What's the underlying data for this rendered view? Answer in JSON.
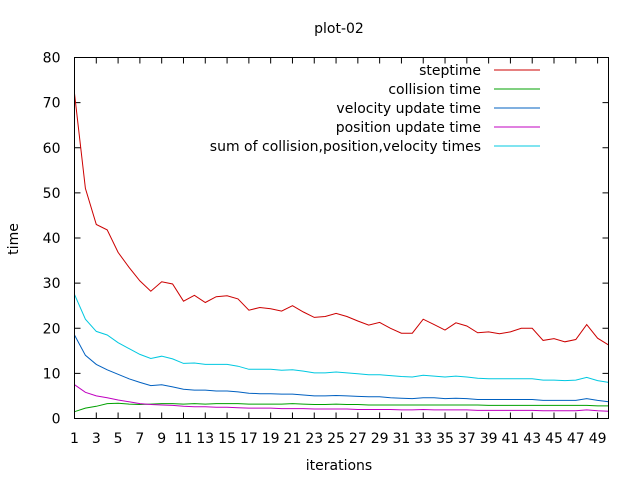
{
  "chart_data": {
    "type": "line",
    "title": "plot-02",
    "xlabel": "iterations",
    "ylabel": "time",
    "xlim": [
      1,
      50
    ],
    "ylim": [
      0,
      80
    ],
    "x_ticks": [
      1,
      3,
      5,
      7,
      9,
      11,
      13,
      15,
      17,
      19,
      21,
      23,
      25,
      27,
      29,
      31,
      33,
      35,
      37,
      39,
      41,
      43,
      45,
      47,
      49
    ],
    "y_ticks": [
      0,
      10,
      20,
      30,
      40,
      50,
      60,
      70,
      80
    ],
    "grid": false,
    "legend_position": "top-right",
    "x": [
      1,
      2,
      3,
      4,
      5,
      6,
      7,
      8,
      9,
      10,
      11,
      12,
      13,
      14,
      15,
      16,
      17,
      18,
      19,
      20,
      21,
      22,
      23,
      24,
      25,
      26,
      27,
      28,
      29,
      30,
      31,
      32,
      33,
      34,
      35,
      36,
      37,
      38,
      39,
      40,
      41,
      42,
      43,
      44,
      45,
      46,
      47,
      48,
      49,
      50
    ],
    "series": [
      {
        "name": "steptime",
        "color": "#cc0000",
        "values": [
          72.0,
          51.0,
          43.0,
          41.8,
          36.8,
          33.5,
          30.5,
          28.2,
          30.3,
          29.8,
          26.0,
          27.3,
          25.7,
          27.0,
          27.2,
          26.5,
          24.0,
          24.6,
          24.3,
          23.8,
          25.0,
          23.6,
          22.4,
          22.6,
          23.3,
          22.6,
          21.6,
          20.7,
          21.3,
          20.0,
          18.9,
          18.9,
          22.0,
          20.8,
          19.6,
          21.2,
          20.5,
          19.0,
          19.2,
          18.8,
          19.2,
          20.0,
          20.0,
          17.3,
          17.7,
          17.0,
          17.5,
          20.8,
          17.8,
          16.3
        ]
      },
      {
        "name": "collision time",
        "color": "#00a000",
        "values": [
          1.5,
          2.3,
          2.7,
          3.3,
          3.4,
          3.2,
          3.1,
          3.2,
          3.3,
          3.3,
          3.2,
          3.3,
          3.2,
          3.3,
          3.3,
          3.3,
          3.2,
          3.2,
          3.2,
          3.2,
          3.3,
          3.2,
          3.1,
          3.1,
          3.2,
          3.1,
          3.1,
          3.0,
          3.0,
          3.0,
          3.0,
          3.0,
          3.0,
          3.0,
          3.0,
          3.0,
          3.0,
          3.0,
          2.9,
          2.9,
          2.9,
          2.9,
          2.9,
          2.9,
          2.9,
          2.9,
          2.9,
          2.9,
          2.8,
          2.8
        ]
      },
      {
        "name": "velocity update time",
        "color": "#0060c0",
        "values": [
          18.5,
          14.0,
          12.0,
          10.8,
          9.8,
          8.8,
          8.0,
          7.3,
          7.5,
          7.0,
          6.5,
          6.3,
          6.3,
          6.1,
          6.1,
          5.9,
          5.6,
          5.5,
          5.5,
          5.4,
          5.4,
          5.2,
          5.0,
          5.0,
          5.1,
          5.0,
          4.9,
          4.8,
          4.8,
          4.6,
          4.5,
          4.4,
          4.6,
          4.6,
          4.4,
          4.5,
          4.4,
          4.2,
          4.2,
          4.2,
          4.2,
          4.2,
          4.2,
          4.0,
          4.0,
          4.0,
          4.0,
          4.4,
          4.0,
          3.7
        ]
      },
      {
        "name": "position update time",
        "color": "#c000c0",
        "values": [
          7.5,
          5.8,
          5.0,
          4.6,
          4.1,
          3.7,
          3.3,
          3.1,
          3.0,
          2.9,
          2.7,
          2.6,
          2.6,
          2.5,
          2.5,
          2.4,
          2.3,
          2.3,
          2.3,
          2.2,
          2.2,
          2.2,
          2.1,
          2.1,
          2.1,
          2.1,
          2.0,
          2.0,
          2.0,
          2.0,
          1.9,
          1.9,
          2.0,
          1.9,
          1.9,
          1.9,
          1.9,
          1.8,
          1.8,
          1.8,
          1.8,
          1.8,
          1.8,
          1.7,
          1.7,
          1.7,
          1.7,
          1.9,
          1.7,
          1.6
        ]
      },
      {
        "name": "sum of collision,position,velocity times",
        "color": "#00c8e0",
        "values": [
          27.5,
          22.0,
          19.3,
          18.5,
          16.8,
          15.5,
          14.2,
          13.3,
          13.8,
          13.2,
          12.2,
          12.3,
          12.0,
          12.0,
          12.0,
          11.6,
          10.9,
          10.9,
          10.9,
          10.7,
          10.8,
          10.5,
          10.1,
          10.1,
          10.3,
          10.1,
          9.9,
          9.7,
          9.7,
          9.5,
          9.3,
          9.2,
          9.6,
          9.4,
          9.2,
          9.4,
          9.2,
          8.9,
          8.8,
          8.8,
          8.8,
          8.8,
          8.8,
          8.5,
          8.5,
          8.4,
          8.5,
          9.1,
          8.4,
          8.0
        ]
      }
    ]
  }
}
